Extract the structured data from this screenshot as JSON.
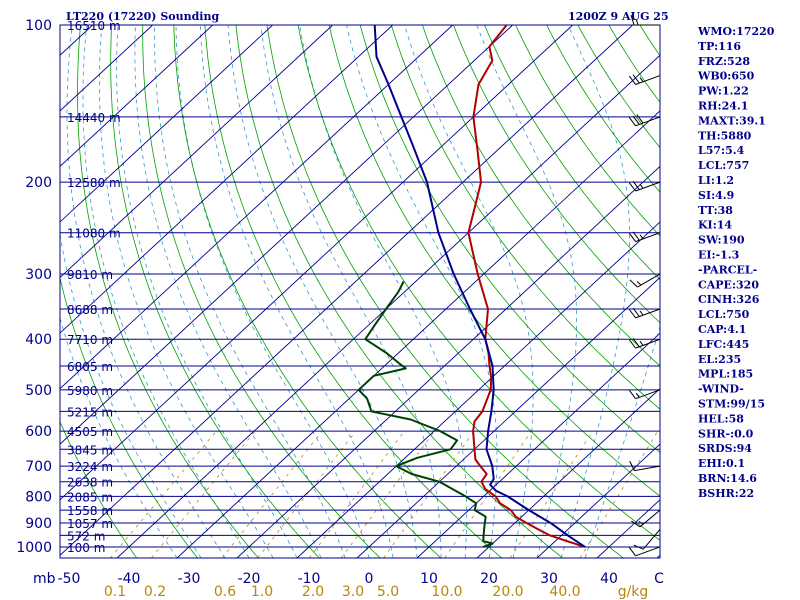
{
  "header": {
    "station": "LT220 (17220) Sounding",
    "time": "1200Z  9 AUG 25"
  },
  "chart_data": {
    "type": "line",
    "yaxis": {
      "label": "mb",
      "scale": "log",
      "ticks": [
        100,
        200,
        300,
        400,
        500,
        600,
        700,
        800,
        900,
        1000
      ],
      "range": [
        100,
        1050
      ]
    },
    "xaxis": {
      "label": "C",
      "ticks": [
        -50,
        -40,
        -30,
        -20,
        -10,
        0,
        10,
        20,
        30,
        40
      ],
      "range": [
        -50,
        50
      ]
    },
    "mixing_ratio": {
      "unit": "g/kg",
      "ticks": [
        "0.1",
        "0.2",
        "0.6",
        "1.0",
        "2.0",
        "3.0",
        "5.0",
        "10.0",
        "20.0",
        "40.0"
      ]
    },
    "heights": [
      {
        "p": 100,
        "label": "16510 m"
      },
      {
        "p": 150,
        "label": "14440 m"
      },
      {
        "p": 200,
        "label": "12580 m"
      },
      {
        "p": 250,
        "label": "11080 m"
      },
      {
        "p": 300,
        "label": "9810 m"
      },
      {
        "p": 350,
        "label": "8688 m"
      },
      {
        "p": 400,
        "label": "7710 m"
      },
      {
        "p": 450,
        "label": "6805 m"
      },
      {
        "p": 500,
        "label": "5980 m"
      },
      {
        "p": 550,
        "label": "5215 m"
      },
      {
        "p": 600,
        "label": "4505 m"
      },
      {
        "p": 650,
        "label": "3845 m"
      },
      {
        "p": 700,
        "label": "3224 m"
      },
      {
        "p": 750,
        "label": "2638 m"
      },
      {
        "p": 800,
        "label": "2085 m"
      },
      {
        "p": 850,
        "label": "1558 m"
      },
      {
        "p": 900,
        "label": "1057 m"
      },
      {
        "p": 950,
        "label": "572 m"
      },
      {
        "p": 1000,
        "label": "100 m"
      }
    ],
    "series": [
      {
        "name": "temperature",
        "color": "#b00000",
        "points": [
          [
            1000,
            36
          ],
          [
            975,
            32
          ],
          [
            950,
            28
          ],
          [
            925,
            25
          ],
          [
            900,
            22
          ],
          [
            875,
            19
          ],
          [
            850,
            17
          ],
          [
            825,
            14
          ],
          [
            800,
            12
          ],
          [
            775,
            9
          ],
          [
            750,
            7
          ],
          [
            725,
            6.5
          ],
          [
            700,
            4
          ],
          [
            680,
            2
          ],
          [
            650,
            0
          ],
          [
            600,
            -3.5
          ],
          [
            575,
            -5
          ],
          [
            550,
            -5.5
          ],
          [
            500,
            -8
          ],
          [
            475,
            -10
          ],
          [
            450,
            -12.5
          ],
          [
            425,
            -15
          ],
          [
            400,
            -18
          ],
          [
            350,
            -23
          ],
          [
            300,
            -31
          ],
          [
            250,
            -40
          ],
          [
            220,
            -44
          ],
          [
            200,
            -47
          ],
          [
            175,
            -53
          ],
          [
            150,
            -60
          ],
          [
            130,
            -65
          ],
          [
            117,
            -67
          ],
          [
            110,
            -70
          ],
          [
            100,
            -71
          ]
        ]
      },
      {
        "name": "parcel",
        "color": "#00008b",
        "points": [
          [
            1000,
            36
          ],
          [
            950,
            31
          ],
          [
            900,
            26
          ],
          [
            850,
            20
          ],
          [
            800,
            14
          ],
          [
            780,
            11
          ],
          [
            760,
            9
          ],
          [
            740,
            8.5
          ],
          [
            700,
            6
          ],
          [
            650,
            2
          ],
          [
            600,
            -1
          ],
          [
            550,
            -4
          ],
          [
            500,
            -7.5
          ],
          [
            450,
            -12
          ],
          [
            400,
            -18
          ],
          [
            350,
            -26
          ],
          [
            300,
            -35
          ],
          [
            250,
            -45
          ],
          [
            200,
            -56
          ],
          [
            170,
            -65
          ],
          [
            150,
            -72
          ],
          [
            130,
            -80
          ],
          [
            115,
            -87
          ],
          [
            100,
            -93
          ]
        ]
      },
      {
        "name": "dewpoint",
        "color": "#004000",
        "points": [
          [
            1000,
            19
          ],
          [
            985,
            20
          ],
          [
            975,
            18
          ],
          [
            950,
            17
          ],
          [
            925,
            16
          ],
          [
            900,
            15
          ],
          [
            875,
            14
          ],
          [
            850,
            11
          ],
          [
            825,
            10
          ],
          [
            800,
            7
          ],
          [
            750,
            0
          ],
          [
            725,
            -6
          ],
          [
            700,
            -10
          ],
          [
            675,
            -8
          ],
          [
            650,
            -4
          ],
          [
            625,
            -4.5
          ],
          [
            600,
            -9
          ],
          [
            570,
            -16
          ],
          [
            550,
            -24
          ],
          [
            520,
            -27
          ],
          [
            500,
            -30
          ],
          [
            470,
            -30
          ],
          [
            455,
            -26
          ],
          [
            445,
            -28
          ],
          [
            425,
            -32
          ],
          [
            400,
            -38
          ],
          [
            375,
            -39
          ],
          [
            350,
            -40
          ],
          [
            325,
            -41
          ],
          [
            310,
            -42
          ]
        ]
      }
    ],
    "winds": [
      {
        "p": 1000,
        "dir": 250,
        "spd": 10
      },
      {
        "p": 925,
        "dir": 220,
        "spd": 10
      },
      {
        "p": 850,
        "dir": 230,
        "spd": 15
      },
      {
        "p": 700,
        "dir": 260,
        "spd": 10
      },
      {
        "p": 500,
        "dir": 250,
        "spd": 15
      },
      {
        "p": 400,
        "dir": 250,
        "spd": 25
      },
      {
        "p": 350,
        "dir": 250,
        "spd": 25
      },
      {
        "p": 300,
        "dir": 240,
        "spd": 15
      },
      {
        "p": 250,
        "dir": 250,
        "spd": 25
      },
      {
        "p": 200,
        "dir": 250,
        "spd": 25
      },
      {
        "p": 150,
        "dir": 250,
        "spd": 30
      },
      {
        "p": 125,
        "dir": 250,
        "spd": 25
      },
      {
        "p": 100,
        "dir": 270,
        "spd": 15
      }
    ]
  },
  "indices": [
    "WMO:17220",
    "TP:116",
    "FRZ:528",
    "WB0:650",
    "PW:1.22",
    "RH:24.1",
    "MAXT:39.1",
    "TH:5880",
    "L57:5.4",
    "LCL:757",
    "LI:1.2",
    "SI:4.9",
    "TT:38",
    "KI:14",
    "SW:190",
    "EI:-1.3",
    "-PARCEL-",
    "CAPE:320",
    "CINH:326",
    "LCL:750",
    "CAP:4.1",
    "LFC:445",
    "EL:235",
    "MPL:185",
    "-WIND-",
    "STM:99/15",
    "HEL:58",
    "SHR-:0.0",
    "SRDS:94",
    "EHI:0.1",
    "BRN:14.6",
    "BSHR:22"
  ],
  "colors": {
    "isobar": "#00008b",
    "isotherm": "#00008b",
    "dry_adiabat": "#00a000",
    "moist_adiabat": "#3399cc",
    "mixing_ratio": "#b8860b",
    "wind_barb": "#000000"
  }
}
